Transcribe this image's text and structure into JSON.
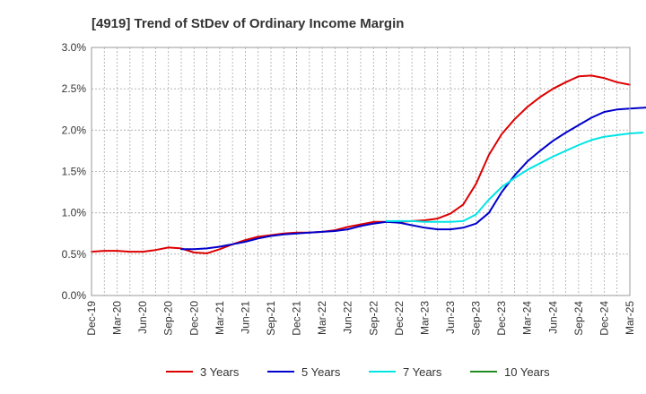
{
  "chart_data": {
    "type": "line",
    "title": "[4919]  Trend of StDev of Ordinary Income Margin",
    "xlabel": "",
    "ylabel": "",
    "ylim": [
      0,
      3.0
    ],
    "yticks": [
      "0.0%",
      "0.5%",
      "1.0%",
      "1.5%",
      "2.0%",
      "2.5%",
      "3.0%"
    ],
    "xticks": [
      "Dec-19",
      "Mar-20",
      "Jun-20",
      "Sep-20",
      "Dec-20",
      "Mar-21",
      "Jun-21",
      "Sep-21",
      "Dec-21",
      "Mar-22",
      "Jun-22",
      "Sep-22",
      "Dec-22",
      "Mar-23",
      "Jun-23",
      "Sep-23",
      "Dec-23",
      "Mar-24",
      "Jun-24",
      "Sep-24",
      "Dec-24",
      "Mar-25"
    ],
    "grid": true,
    "legend_position": "bottom",
    "series": [
      {
        "name": "3 Years",
        "color": "#dd0000",
        "start_index": 0,
        "values": [
          0.53,
          0.54,
          0.54,
          0.53,
          0.53,
          0.55,
          0.58,
          0.57,
          0.52,
          0.51,
          0.56,
          0.62,
          0.67,
          0.71,
          0.73,
          0.75,
          0.76,
          0.76,
          0.77,
          0.79,
          0.83,
          0.86,
          0.89,
          0.89,
          0.89,
          0.9,
          0.91,
          0.93,
          0.99,
          1.1,
          1.35,
          1.7,
          1.95,
          2.13,
          2.28,
          2.4,
          2.5,
          2.58,
          2.65,
          2.66,
          2.63,
          2.58,
          2.55
        ]
      },
      {
        "name": "5 Years",
        "color": "#0000cc",
        "start_index": 7,
        "values": [
          0.56,
          0.56,
          0.57,
          0.59,
          0.62,
          0.65,
          0.69,
          0.72,
          0.74,
          0.75,
          0.76,
          0.77,
          0.78,
          0.8,
          0.84,
          0.87,
          0.89,
          0.88,
          0.85,
          0.82,
          0.8,
          0.8,
          0.82,
          0.87,
          1.0,
          1.25,
          1.45,
          1.62,
          1.75,
          1.87,
          1.97,
          2.06,
          2.15,
          2.22,
          2.25,
          2.26,
          2.27,
          2.28
        ]
      },
      {
        "name": "7 Years",
        "color": "#00e5e5",
        "start_index": 23,
        "values": [
          0.9,
          0.9,
          0.9,
          0.89,
          0.89,
          0.89,
          0.9,
          0.98,
          1.16,
          1.31,
          1.42,
          1.52,
          1.6,
          1.68,
          1.75,
          1.82,
          1.88,
          1.92,
          1.94,
          1.96,
          1.97
        ]
      },
      {
        "name": "10 Years",
        "color": "#228b22",
        "start_index": 0,
        "values": []
      }
    ]
  }
}
